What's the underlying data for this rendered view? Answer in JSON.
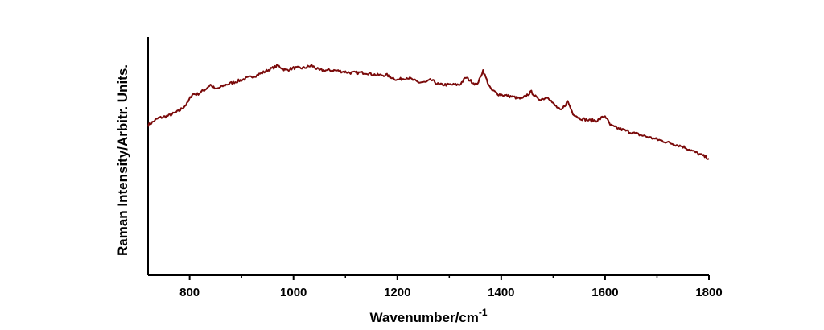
{
  "chart_data": {
    "type": "line",
    "title": "",
    "xlabel": "Wavenumber/cm",
    "xlabel_superscript": "-1",
    "ylabel": "Raman Intensity/Arbitr. Units.",
    "xlim": [
      720,
      1800
    ],
    "ylim": [
      0,
      1
    ],
    "x_ticks": [
      800,
      1000,
      1200,
      1400,
      1600,
      1800
    ],
    "y_tick_labels_shown": false,
    "grid": false,
    "legend": "none",
    "line_color": "#7a0a0a",
    "series": [
      {
        "x": [
          720,
          740,
          760,
          780,
          795,
          805,
          815,
          830,
          840,
          850,
          870,
          900,
          930,
          950,
          970,
          985,
          1000,
          1020,
          1035,
          1050,
          1080,
          1110,
          1140,
          1160,
          1180,
          1200,
          1220,
          1240,
          1255,
          1265,
          1280,
          1300,
          1320,
          1332,
          1345,
          1352,
          1358,
          1365,
          1372,
          1380,
          1395,
          1420,
          1440,
          1458,
          1470,
          1480,
          1490,
          1500,
          1515,
          1528,
          1538,
          1550,
          1570,
          1585,
          1600,
          1610,
          1620,
          1650,
          1700,
          1750,
          1800
        ],
        "values": [
          0.63,
          0.66,
          0.67,
          0.69,
          0.72,
          0.76,
          0.76,
          0.78,
          0.8,
          0.78,
          0.8,
          0.82,
          0.84,
          0.86,
          0.88,
          0.86,
          0.87,
          0.87,
          0.88,
          0.86,
          0.86,
          0.85,
          0.85,
          0.84,
          0.84,
          0.82,
          0.83,
          0.81,
          0.81,
          0.82,
          0.8,
          0.8,
          0.8,
          0.83,
          0.81,
          0.8,
          0.82,
          0.86,
          0.82,
          0.78,
          0.76,
          0.75,
          0.74,
          0.77,
          0.74,
          0.74,
          0.75,
          0.72,
          0.69,
          0.73,
          0.68,
          0.66,
          0.65,
          0.65,
          0.67,
          0.63,
          0.62,
          0.6,
          0.57,
          0.54,
          0.49
        ]
      }
    ]
  }
}
